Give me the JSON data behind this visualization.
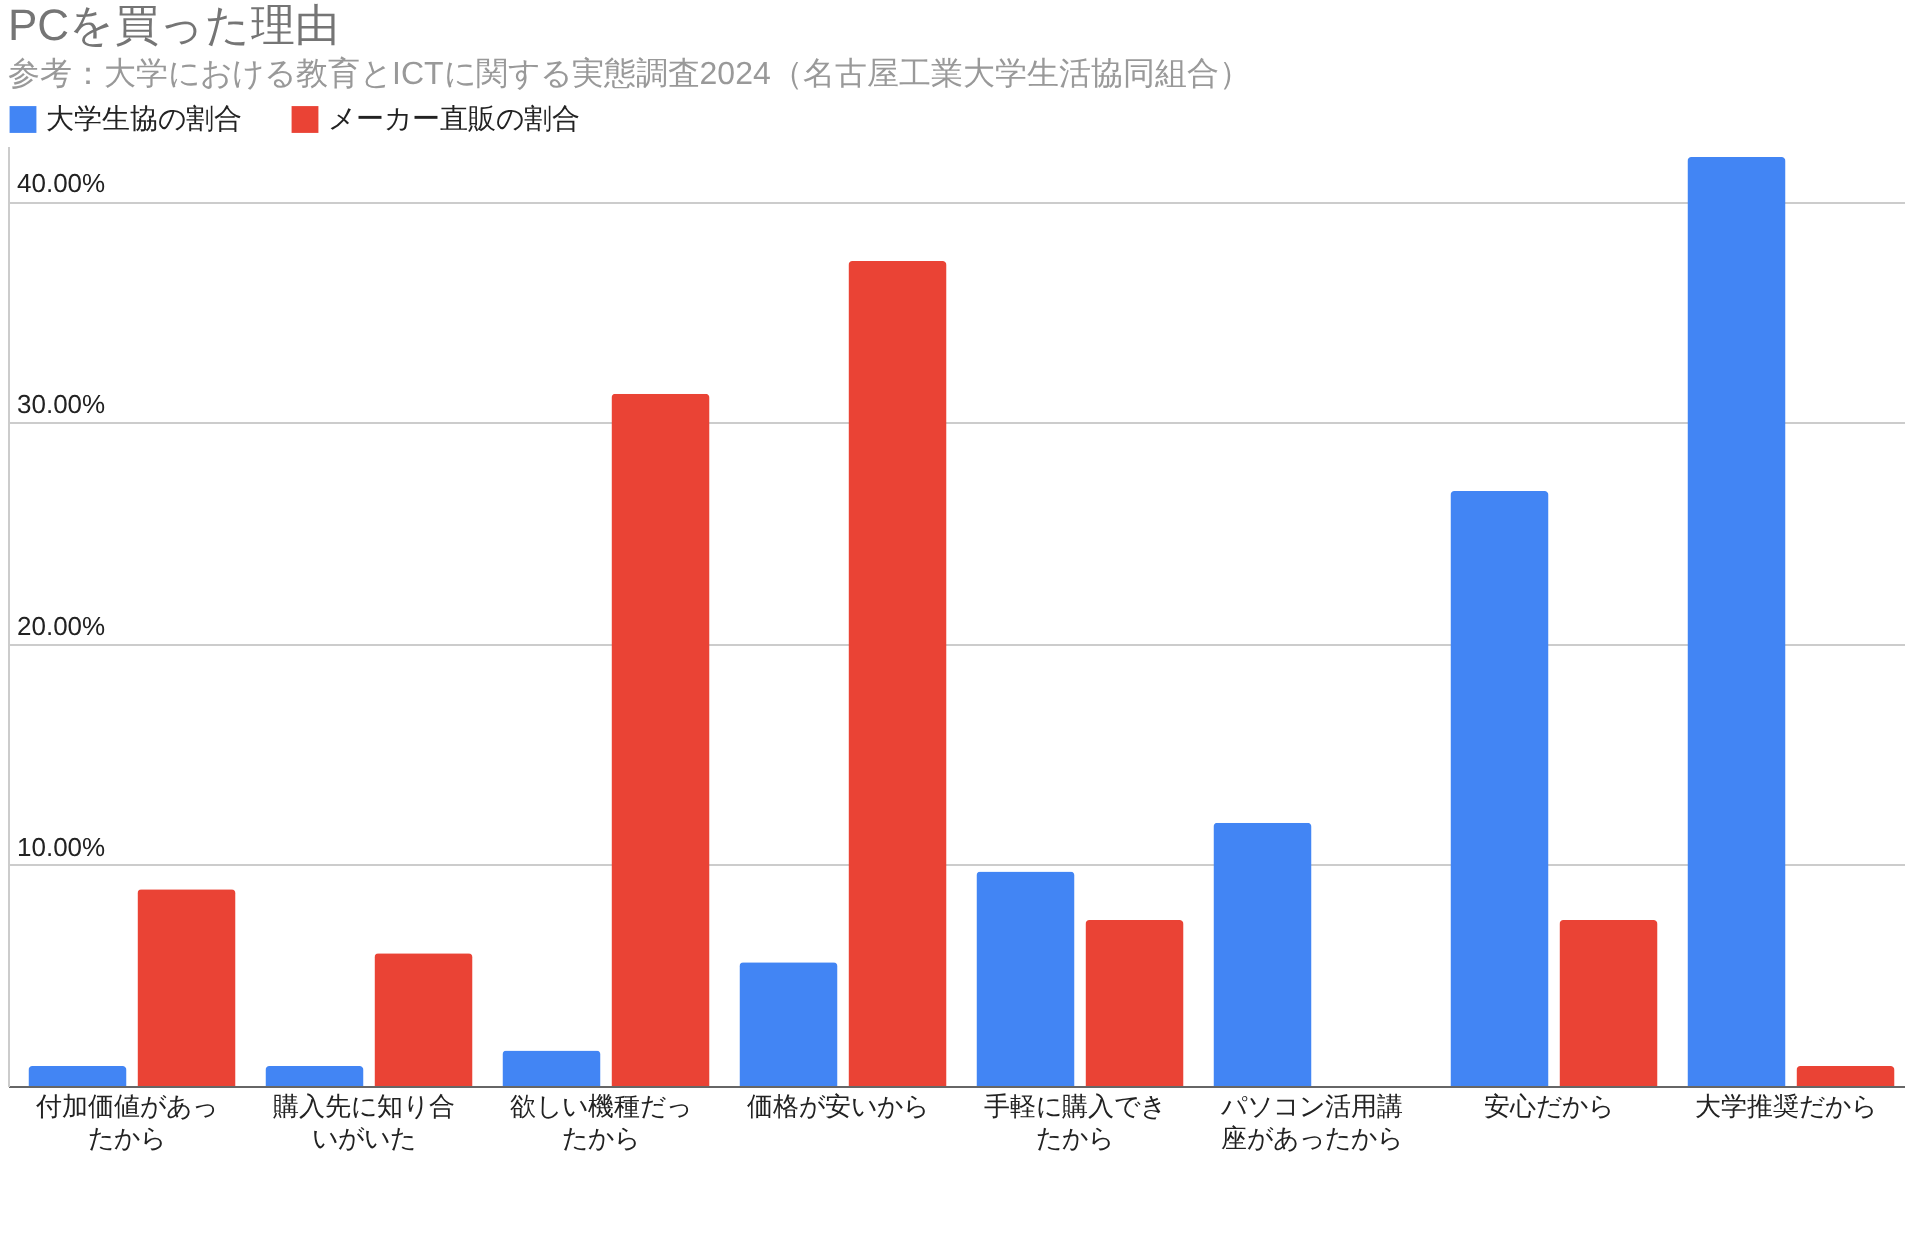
{
  "chart_data": {
    "type": "bar",
    "title": "PCを買った理由",
    "subtitle": "参考：大学における教育とICTに関する実態調査2024（名古屋工業大学生活協同組合）",
    "categories": [
      "付加価値があったから",
      "購入先に知り合いがいた",
      "欲しい機種だったから",
      "価格が安いから",
      "手軽に購入できたから",
      "パソコン活用講座があったから",
      "安心だから",
      "大学推奨だから"
    ],
    "series": [
      {
        "name": "大学生協の割合",
        "color": "#4285f4",
        "values": [
          0.9,
          0.9,
          1.6,
          5.6,
          9.7,
          11.9,
          26.9,
          42.0
        ]
      },
      {
        "name": "メーカー直販の割合",
        "color": "#ea4335",
        "values": [
          8.9,
          6.0,
          31.3,
          37.3,
          7.5,
          null,
          7.5,
          0.9
        ]
      }
    ],
    "ylim": [
      0,
      42.5
    ],
    "yticks": [
      {
        "value": 10,
        "label": "10.00%"
      },
      {
        "value": 20,
        "label": "20.00%"
      },
      {
        "value": 30,
        "label": "30.00%"
      },
      {
        "value": 40,
        "label": "40.00%"
      }
    ],
    "grid": "y",
    "legend": "top left"
  }
}
